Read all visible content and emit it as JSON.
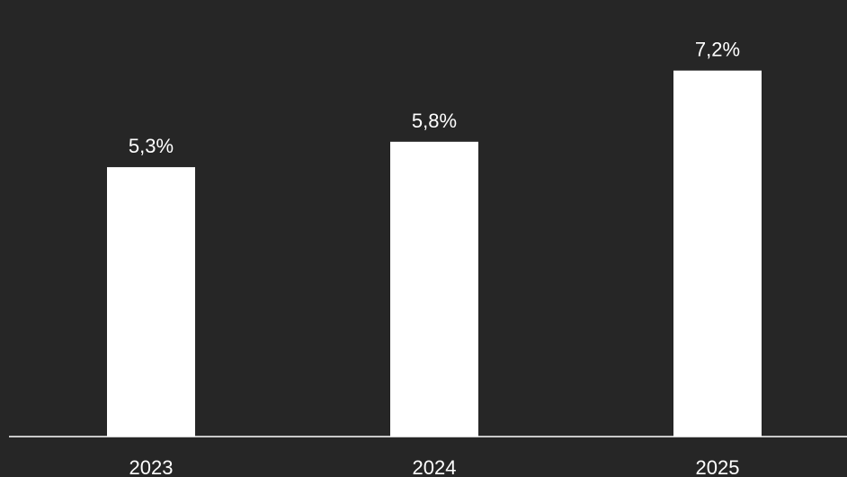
{
  "colors": {
    "background": "#262626",
    "bar": "#ffffff",
    "text": "#ffffff",
    "axis": "#ffffff"
  },
  "chart_data": {
    "type": "bar",
    "categories": [
      "2023",
      "2024",
      "2025"
    ],
    "values": [
      5.3,
      5.8,
      7.2
    ],
    "value_labels": [
      "5,3%",
      "5,8%",
      "7,2%"
    ],
    "title": "",
    "xlabel": "",
    "ylabel": "",
    "ylim": [
      0,
      8.2
    ],
    "grid": false,
    "legend": "none"
  }
}
